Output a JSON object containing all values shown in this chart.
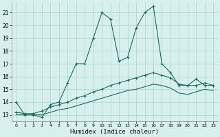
{
  "xlabel": "Humidex (Indice chaleur)",
  "xlim": [
    -0.5,
    23.5
  ],
  "ylim": [
    12.5,
    21.8
  ],
  "yticks": [
    13,
    14,
    15,
    16,
    17,
    18,
    19,
    20,
    21
  ],
  "xticks": [
    0,
    1,
    2,
    3,
    4,
    5,
    6,
    7,
    8,
    9,
    10,
    11,
    12,
    13,
    14,
    15,
    16,
    17,
    18,
    19,
    20,
    21,
    22,
    23
  ],
  "bg_color": "#d7efed",
  "grid_color": "#b0d8d5",
  "line_color": "#1a6b5e",
  "series1_x": [
    0,
    1,
    2,
    3,
    4,
    5,
    6,
    7,
    8,
    9,
    10,
    11,
    12,
    13,
    14,
    15,
    16,
    17,
    18,
    19,
    20,
    21,
    22,
    23
  ],
  "series1_y": [
    14.0,
    13.0,
    13.0,
    12.8,
    13.8,
    14.0,
    15.5,
    17.0,
    17.0,
    19.0,
    21.0,
    20.5,
    17.2,
    17.5,
    19.8,
    21.0,
    21.5,
    17.0,
    16.3,
    15.3,
    15.3,
    15.8,
    15.3,
    15.3
  ],
  "series2_x": [
    0,
    1,
    2,
    3,
    4,
    5,
    6,
    7,
    8,
    9,
    10,
    11,
    12,
    13,
    14,
    15,
    16,
    17,
    18,
    19,
    20,
    21,
    22,
    23
  ],
  "series2_y": [
    13.2,
    13.1,
    13.1,
    13.3,
    13.6,
    13.8,
    14.0,
    14.3,
    14.5,
    14.8,
    15.0,
    15.3,
    15.5,
    15.7,
    15.9,
    16.1,
    16.3,
    16.1,
    15.9,
    15.4,
    15.3,
    15.3,
    15.5,
    15.3
  ],
  "series3_x": [
    0,
    1,
    2,
    3,
    4,
    5,
    6,
    7,
    8,
    9,
    10,
    11,
    12,
    13,
    14,
    15,
    16,
    17,
    18,
    19,
    20,
    21,
    22,
    23
  ],
  "series3_y": [
    13.0,
    13.0,
    13.0,
    13.0,
    13.2,
    13.4,
    13.5,
    13.7,
    13.9,
    14.1,
    14.3,
    14.5,
    14.7,
    14.9,
    15.0,
    15.2,
    15.4,
    15.3,
    15.1,
    14.7,
    14.6,
    14.8,
    15.0,
    14.9
  ]
}
